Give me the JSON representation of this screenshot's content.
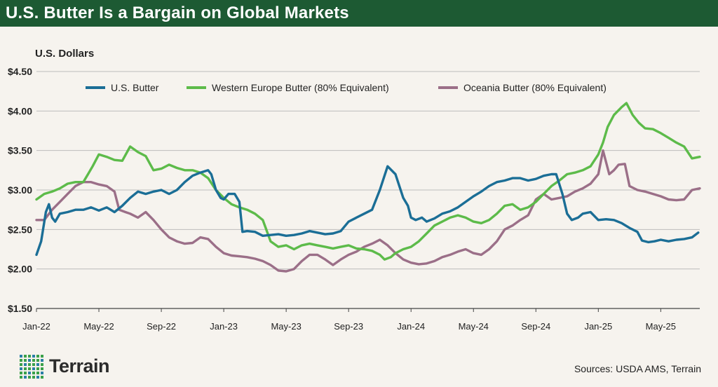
{
  "header": {
    "title": "U.S. Butter Is a Bargain on Global Markets"
  },
  "footer": {
    "brand": "Terrain",
    "sources": "Sources: USDA AMS, Terrain"
  },
  "colors": {
    "title_bg": "#1d5a33",
    "us": "#1b6e96",
    "we": "#5dbb4a",
    "oc": "#9b6f88",
    "logo_green": "#3aa04a",
    "logo_teal": "#2a7fa6"
  },
  "chart_data": {
    "type": "line",
    "title": "U.S. Butter Is a Bargain on Global Markets",
    "ylabel": "U.S. Dollars",
    "xlabel": "",
    "ylim": [
      1.5,
      4.5
    ],
    "xlim": [
      0,
      42.5
    ],
    "yticks": [
      1.5,
      2.0,
      2.5,
      3.0,
      3.5,
      4.0,
      4.5
    ],
    "ytick_labels": [
      "$1.50",
      "$2.00",
      "$2.50",
      "$3.00",
      "$3.50",
      "$4.00",
      "$4.50"
    ],
    "xticks": [
      0,
      4,
      8,
      12,
      16,
      20,
      24,
      28,
      32,
      36,
      40
    ],
    "xtick_labels": [
      "Jan-22",
      "May-22",
      "Sep-22",
      "Jan-23",
      "May-23",
      "Sep-23",
      "Jan-24",
      "May-24",
      "Sep-24",
      "Jan-25",
      "May-25"
    ],
    "x_unit": "months since Jan-22",
    "legend_position": "top",
    "grid": "horizontal",
    "series": [
      {
        "key": "us",
        "name": "U.S. Butter",
        "points": [
          [
            0,
            2.18
          ],
          [
            0.3,
            2.35
          ],
          [
            0.6,
            2.72
          ],
          [
            0.8,
            2.82
          ],
          [
            1.0,
            2.65
          ],
          [
            1.2,
            2.6
          ],
          [
            1.5,
            2.7
          ],
          [
            2.0,
            2.72
          ],
          [
            2.5,
            2.75
          ],
          [
            3.0,
            2.75
          ],
          [
            3.5,
            2.78
          ],
          [
            4.0,
            2.74
          ],
          [
            4.5,
            2.78
          ],
          [
            5.0,
            2.72
          ],
          [
            5.5,
            2.8
          ],
          [
            6.0,
            2.9
          ],
          [
            6.5,
            2.98
          ],
          [
            7.0,
            2.95
          ],
          [
            7.5,
            2.98
          ],
          [
            8.0,
            3.0
          ],
          [
            8.5,
            2.95
          ],
          [
            9.0,
            3.0
          ],
          [
            9.5,
            3.1
          ],
          [
            10.0,
            3.18
          ],
          [
            10.5,
            3.22
          ],
          [
            11.0,
            3.25
          ],
          [
            11.2,
            3.2
          ],
          [
            11.5,
            3.0
          ],
          [
            11.8,
            2.9
          ],
          [
            12.0,
            2.88
          ],
          [
            12.3,
            2.95
          ],
          [
            12.7,
            2.95
          ],
          [
            13.0,
            2.85
          ],
          [
            13.2,
            2.47
          ],
          [
            13.5,
            2.48
          ],
          [
            14.0,
            2.47
          ],
          [
            14.5,
            2.42
          ],
          [
            15.0,
            2.43
          ],
          [
            15.5,
            2.44
          ],
          [
            16.0,
            2.42
          ],
          [
            16.5,
            2.43
          ],
          [
            17.0,
            2.45
          ],
          [
            17.5,
            2.48
          ],
          [
            18.0,
            2.46
          ],
          [
            18.5,
            2.44
          ],
          [
            19.0,
            2.45
          ],
          [
            19.5,
            2.48
          ],
          [
            20.0,
            2.6
          ],
          [
            20.5,
            2.65
          ],
          [
            21.0,
            2.7
          ],
          [
            21.5,
            2.75
          ],
          [
            22.0,
            3.0
          ],
          [
            22.5,
            3.3
          ],
          [
            23.0,
            3.2
          ],
          [
            23.5,
            2.9
          ],
          [
            23.8,
            2.8
          ],
          [
            24.0,
            2.65
          ],
          [
            24.3,
            2.62
          ],
          [
            24.7,
            2.65
          ],
          [
            25.0,
            2.6
          ],
          [
            25.5,
            2.64
          ],
          [
            26.0,
            2.7
          ],
          [
            26.5,
            2.73
          ],
          [
            27.0,
            2.78
          ],
          [
            27.5,
            2.85
          ],
          [
            28.0,
            2.92
          ],
          [
            28.5,
            2.98
          ],
          [
            29.0,
            3.05
          ],
          [
            29.5,
            3.1
          ],
          [
            30.0,
            3.12
          ],
          [
            30.5,
            3.15
          ],
          [
            31.0,
            3.15
          ],
          [
            31.5,
            3.12
          ],
          [
            32.0,
            3.14
          ],
          [
            32.5,
            3.18
          ],
          [
            33.0,
            3.2
          ],
          [
            33.3,
            3.2
          ],
          [
            33.7,
            2.95
          ],
          [
            34.0,
            2.7
          ],
          [
            34.3,
            2.62
          ],
          [
            34.7,
            2.65
          ],
          [
            35.0,
            2.7
          ],
          [
            35.5,
            2.72
          ],
          [
            36.0,
            2.62
          ],
          [
            36.5,
            2.63
          ],
          [
            37.0,
            2.62
          ],
          [
            37.5,
            2.58
          ],
          [
            38.0,
            2.52
          ],
          [
            38.5,
            2.47
          ],
          [
            38.8,
            2.36
          ],
          [
            39.2,
            2.34
          ],
          [
            39.6,
            2.35
          ],
          [
            40.0,
            2.37
          ],
          [
            40.5,
            2.35
          ],
          [
            41.0,
            2.37
          ],
          [
            41.5,
            2.38
          ],
          [
            42.0,
            2.4
          ],
          [
            42.4,
            2.46
          ]
        ]
      },
      {
        "key": "we",
        "name": "Western Europe Butter (80% Equivalent)",
        "points": [
          [
            0,
            2.88
          ],
          [
            0.5,
            2.95
          ],
          [
            1.0,
            2.98
          ],
          [
            1.5,
            3.02
          ],
          [
            2.0,
            3.08
          ],
          [
            2.5,
            3.1
          ],
          [
            3.0,
            3.1
          ],
          [
            3.3,
            3.2
          ],
          [
            3.6,
            3.3
          ],
          [
            4.0,
            3.45
          ],
          [
            4.5,
            3.42
          ],
          [
            5.0,
            3.38
          ],
          [
            5.5,
            3.37
          ],
          [
            6.0,
            3.55
          ],
          [
            6.5,
            3.48
          ],
          [
            7.0,
            3.43
          ],
          [
            7.5,
            3.25
          ],
          [
            8.0,
            3.27
          ],
          [
            8.5,
            3.32
          ],
          [
            9.0,
            3.28
          ],
          [
            9.5,
            3.25
          ],
          [
            10.0,
            3.25
          ],
          [
            10.5,
            3.22
          ],
          [
            11.0,
            3.15
          ],
          [
            11.5,
            3.0
          ],
          [
            12.0,
            2.9
          ],
          [
            12.5,
            2.82
          ],
          [
            13.0,
            2.78
          ],
          [
            13.5,
            2.75
          ],
          [
            14.0,
            2.7
          ],
          [
            14.5,
            2.62
          ],
          [
            15.0,
            2.35
          ],
          [
            15.5,
            2.28
          ],
          [
            16.0,
            2.3
          ],
          [
            16.5,
            2.25
          ],
          [
            17.0,
            2.3
          ],
          [
            17.5,
            2.32
          ],
          [
            18.0,
            2.3
          ],
          [
            18.5,
            2.28
          ],
          [
            19.0,
            2.26
          ],
          [
            19.5,
            2.28
          ],
          [
            20.0,
            2.3
          ],
          [
            20.5,
            2.26
          ],
          [
            21.0,
            2.25
          ],
          [
            21.5,
            2.23
          ],
          [
            22.0,
            2.18
          ],
          [
            22.3,
            2.12
          ],
          [
            22.7,
            2.15
          ],
          [
            23.0,
            2.2
          ],
          [
            23.5,
            2.25
          ],
          [
            24.0,
            2.28
          ],
          [
            24.5,
            2.35
          ],
          [
            25.0,
            2.45
          ],
          [
            25.5,
            2.55
          ],
          [
            26.0,
            2.6
          ],
          [
            26.5,
            2.65
          ],
          [
            27.0,
            2.68
          ],
          [
            27.5,
            2.65
          ],
          [
            28.0,
            2.6
          ],
          [
            28.5,
            2.58
          ],
          [
            29.0,
            2.62
          ],
          [
            29.5,
            2.7
          ],
          [
            30.0,
            2.8
          ],
          [
            30.5,
            2.82
          ],
          [
            31.0,
            2.75
          ],
          [
            31.5,
            2.78
          ],
          [
            32.0,
            2.85
          ],
          [
            32.5,
            2.95
          ],
          [
            33.0,
            3.05
          ],
          [
            33.5,
            3.12
          ],
          [
            34.0,
            3.2
          ],
          [
            34.5,
            3.22
          ],
          [
            35.0,
            3.25
          ],
          [
            35.5,
            3.3
          ],
          [
            36.0,
            3.45
          ],
          [
            36.3,
            3.6
          ],
          [
            36.6,
            3.8
          ],
          [
            37.0,
            3.95
          ],
          [
            37.5,
            4.05
          ],
          [
            37.8,
            4.1
          ],
          [
            38.2,
            3.95
          ],
          [
            38.6,
            3.85
          ],
          [
            39.0,
            3.78
          ],
          [
            39.5,
            3.77
          ],
          [
            40.0,
            3.72
          ],
          [
            40.5,
            3.66
          ],
          [
            41.0,
            3.6
          ],
          [
            41.5,
            3.55
          ],
          [
            42.0,
            3.4
          ],
          [
            42.5,
            3.42
          ]
        ]
      },
      {
        "key": "oc",
        "name": "Oceania Butter (80% Equivalent)",
        "points": [
          [
            0,
            2.62
          ],
          [
            0.5,
            2.62
          ],
          [
            1.0,
            2.75
          ],
          [
            1.5,
            2.85
          ],
          [
            2.0,
            2.95
          ],
          [
            2.5,
            3.05
          ],
          [
            3.0,
            3.1
          ],
          [
            3.5,
            3.1
          ],
          [
            4.0,
            3.07
          ],
          [
            4.5,
            3.05
          ],
          [
            5.0,
            2.98
          ],
          [
            5.3,
            2.75
          ],
          [
            5.7,
            2.72
          ],
          [
            6.0,
            2.7
          ],
          [
            6.5,
            2.65
          ],
          [
            7.0,
            2.72
          ],
          [
            7.5,
            2.62
          ],
          [
            8.0,
            2.5
          ],
          [
            8.5,
            2.4
          ],
          [
            9.0,
            2.35
          ],
          [
            9.5,
            2.32
          ],
          [
            10.0,
            2.33
          ],
          [
            10.5,
            2.4
          ],
          [
            11.0,
            2.38
          ],
          [
            11.5,
            2.28
          ],
          [
            12.0,
            2.2
          ],
          [
            12.5,
            2.17
          ],
          [
            13.0,
            2.16
          ],
          [
            13.5,
            2.15
          ],
          [
            14.0,
            2.13
          ],
          [
            14.5,
            2.1
          ],
          [
            15.0,
            2.05
          ],
          [
            15.5,
            1.98
          ],
          [
            16.0,
            1.97
          ],
          [
            16.5,
            2.0
          ],
          [
            17.0,
            2.1
          ],
          [
            17.5,
            2.18
          ],
          [
            18.0,
            2.18
          ],
          [
            18.5,
            2.12
          ],
          [
            19.0,
            2.05
          ],
          [
            19.5,
            2.12
          ],
          [
            20.0,
            2.18
          ],
          [
            20.5,
            2.22
          ],
          [
            21.0,
            2.28
          ],
          [
            21.5,
            2.32
          ],
          [
            22.0,
            2.37
          ],
          [
            22.5,
            2.3
          ],
          [
            23.0,
            2.2
          ],
          [
            23.5,
            2.12
          ],
          [
            24.0,
            2.08
          ],
          [
            24.5,
            2.06
          ],
          [
            25.0,
            2.07
          ],
          [
            25.5,
            2.1
          ],
          [
            26.0,
            2.15
          ],
          [
            26.5,
            2.18
          ],
          [
            27.0,
            2.22
          ],
          [
            27.5,
            2.25
          ],
          [
            28.0,
            2.2
          ],
          [
            28.5,
            2.18
          ],
          [
            29.0,
            2.25
          ],
          [
            29.5,
            2.35
          ],
          [
            30.0,
            2.5
          ],
          [
            30.5,
            2.55
          ],
          [
            31.0,
            2.62
          ],
          [
            31.5,
            2.68
          ],
          [
            32.0,
            2.88
          ],
          [
            32.5,
            2.95
          ],
          [
            33.0,
            2.88
          ],
          [
            33.5,
            2.9
          ],
          [
            34.0,
            2.92
          ],
          [
            34.5,
            2.98
          ],
          [
            35.0,
            3.02
          ],
          [
            35.5,
            3.08
          ],
          [
            36.0,
            3.2
          ],
          [
            36.3,
            3.5
          ],
          [
            36.7,
            3.2
          ],
          [
            37.0,
            3.25
          ],
          [
            37.3,
            3.32
          ],
          [
            37.7,
            3.33
          ],
          [
            38.0,
            3.05
          ],
          [
            38.5,
            3.0
          ],
          [
            39.0,
            2.98
          ],
          [
            39.5,
            2.95
          ],
          [
            40.0,
            2.92
          ],
          [
            40.5,
            2.88
          ],
          [
            41.0,
            2.87
          ],
          [
            41.5,
            2.88
          ],
          [
            42.0,
            3.0
          ],
          [
            42.5,
            3.02
          ]
        ]
      }
    ]
  }
}
